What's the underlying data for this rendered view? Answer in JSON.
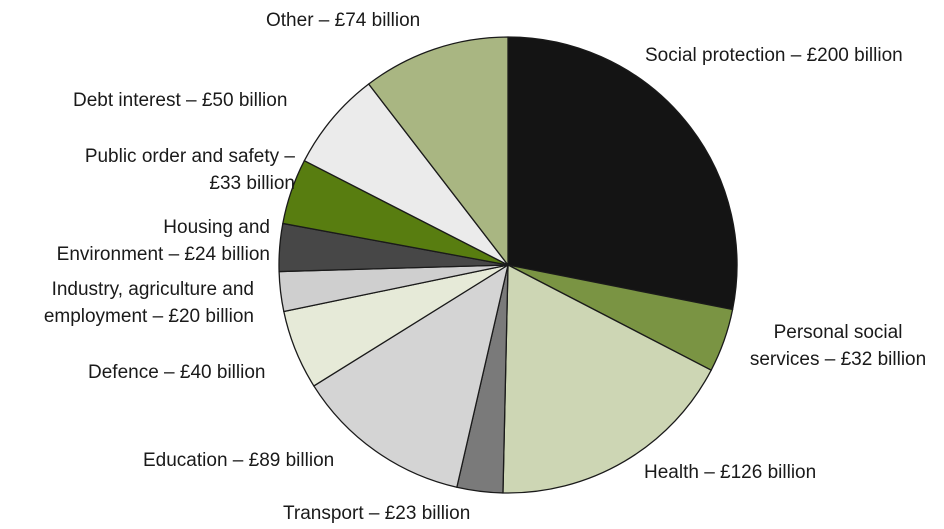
{
  "chart_data": {
    "type": "pie",
    "start_angle": "12 o'clock",
    "direction": "clockwise",
    "slices": [
      {
        "label": [
          "Social protection – £200 billion"
        ],
        "value": 200,
        "color": "#141414"
      },
      {
        "label": [
          "Personal social",
          "services – £32 billion"
        ],
        "value": 32,
        "color": "#7a9443"
      },
      {
        "label": [
          "Health – £126 billion"
        ],
        "value": 126,
        "color": "#cdd6b4"
      },
      {
        "label": [
          "Transport – £23 billion"
        ],
        "value": 23,
        "color": "#7a7a7a"
      },
      {
        "label": [
          "Education – £89 billion"
        ],
        "value": 89,
        "color": "#d4d4d4"
      },
      {
        "label": [
          "Defence – £40 billion"
        ],
        "value": 40,
        "color": "#e6ead8"
      },
      {
        "label": [
          "Industry, agriculture and",
          "employment – £20 billion"
        ],
        "value": 20,
        "color": "#cfcfcf"
      },
      {
        "label": [
          "Housing and",
          "Environment – £24 billion"
        ],
        "value": 24,
        "color": "#474747"
      },
      {
        "label": [
          "Public order and safety –",
          "£33 billion"
        ],
        "value": 33,
        "color": "#587d10"
      },
      {
        "label": [
          "Debt interest – £50 billion"
        ],
        "value": 50,
        "color": "#ebebeb"
      },
      {
        "label": [
          "Other – £74 billion"
        ],
        "value": 74,
        "color": "#a9b682"
      }
    ]
  }
}
